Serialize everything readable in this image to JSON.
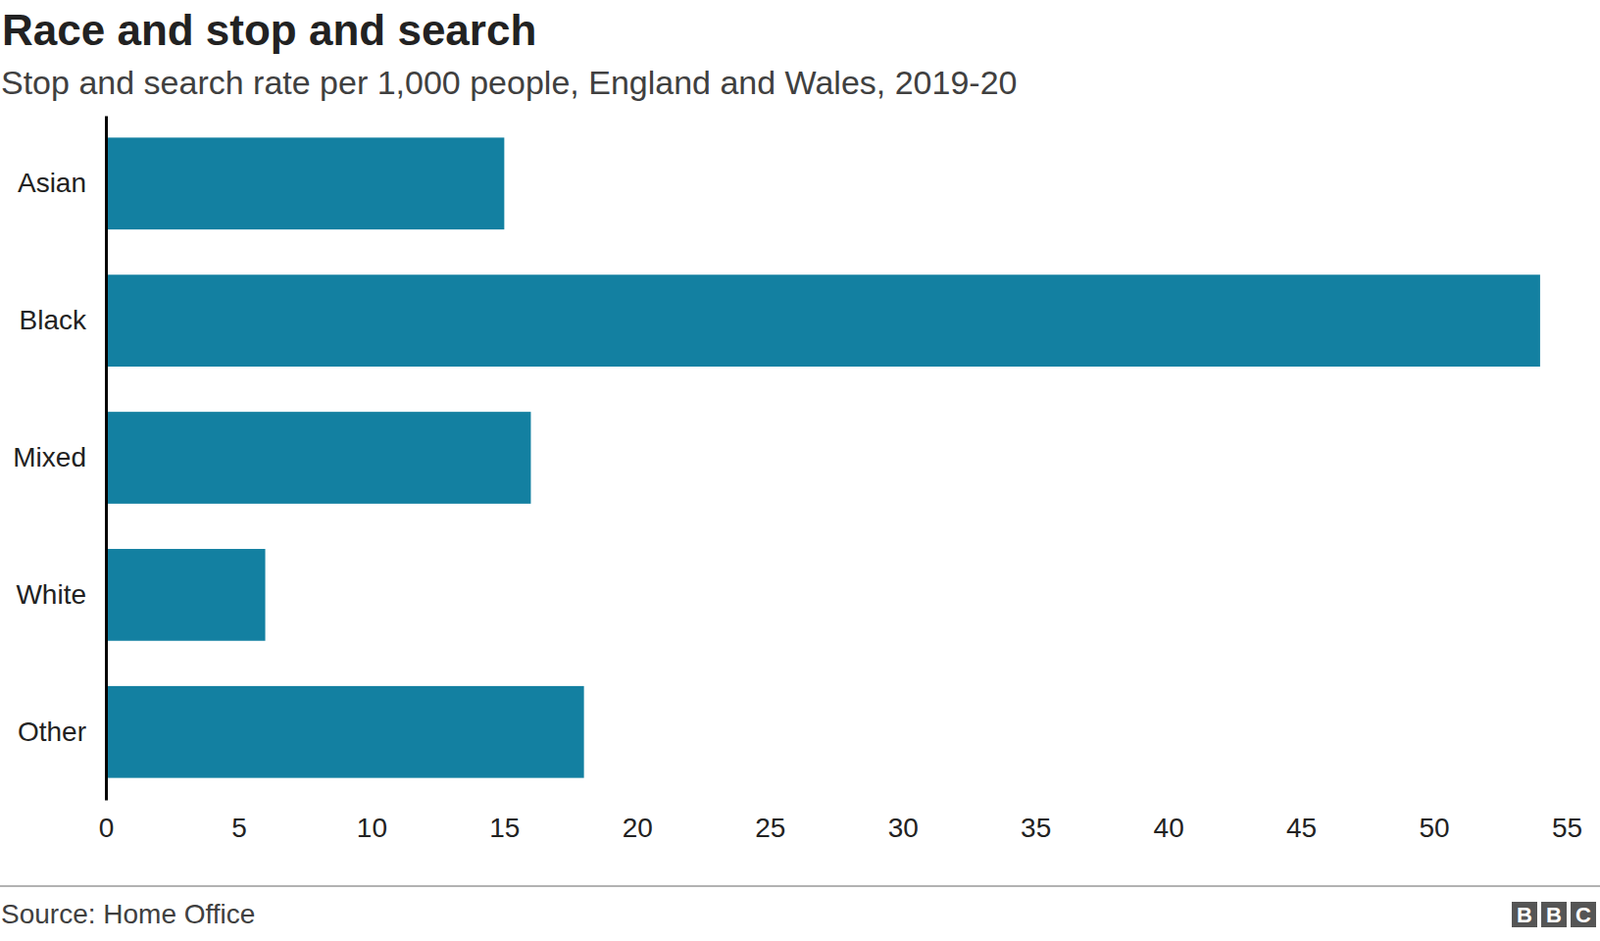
{
  "chart_data": {
    "type": "bar",
    "orientation": "horizontal",
    "title": "Race and stop and search",
    "subtitle": "Stop and search rate per 1,000 people, England and Wales, 2019-20",
    "categories": [
      "Asian",
      "Black",
      "Mixed",
      "White",
      "Other"
    ],
    "values": [
      15,
      54,
      16,
      6,
      18
    ],
    "color": "#1380a1",
    "xlim": [
      0,
      55
    ],
    "xticks": [
      0,
      5,
      10,
      15,
      20,
      25,
      30,
      35,
      40,
      45,
      50,
      55
    ],
    "grid": false,
    "source": "Source: Home Office",
    "logo": "BBC"
  }
}
